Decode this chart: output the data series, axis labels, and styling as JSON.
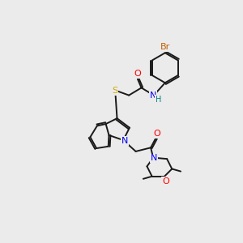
{
  "bg_color": "#ebebeb",
  "bond_color": "#1a1a1a",
  "atom_colors": {
    "Br": "#c06000",
    "O": "#ff0000",
    "N": "#0000ee",
    "S": "#ccaa00",
    "H": "#008080",
    "C": "#1a1a1a"
  },
  "figsize": [
    3.0,
    3.0
  ],
  "dpi": 100
}
